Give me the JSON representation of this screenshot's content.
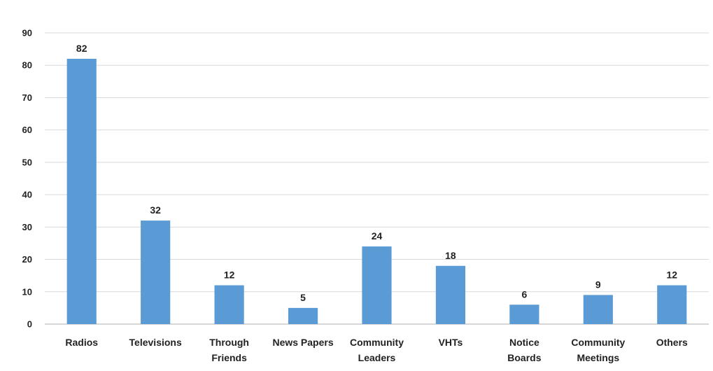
{
  "chart_data": {
    "type": "bar",
    "categories": [
      [
        "Radios"
      ],
      [
        "Televisions"
      ],
      [
        "Through",
        "Friends"
      ],
      [
        "News Papers"
      ],
      [
        "Community",
        "Leaders"
      ],
      [
        "VHTs"
      ],
      [
        "Notice",
        "Boards"
      ],
      [
        "Community",
        "Meetings"
      ],
      [
        "Others"
      ]
    ],
    "values": [
      82,
      32,
      12,
      5,
      24,
      18,
      6,
      9,
      12
    ],
    "ylim": [
      0,
      90
    ],
    "yticks": [
      "0",
      "10",
      "20",
      "30",
      "40",
      "50",
      "60",
      "70",
      "80",
      "90"
    ],
    "data_labels": [
      "82",
      "32",
      "12",
      "5",
      "24",
      "18",
      "6",
      "9",
      "12"
    ],
    "grid": true,
    "bar_color": "#5b9bd5",
    "grid_color": "#d9d9d9"
  }
}
